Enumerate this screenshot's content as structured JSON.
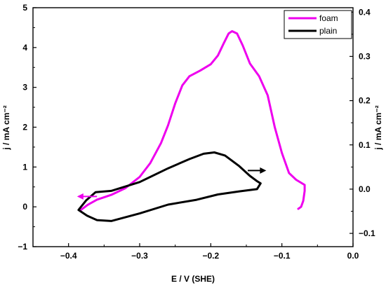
{
  "chart_data": {
    "type": "line",
    "title": "",
    "xlabel": "E / V (SHE)",
    "ylabel_left": "j / mA cm⁻²",
    "ylabel_right": "j / mA cm⁻²",
    "xlim": [
      -0.45,
      0.0
    ],
    "ylim_left": [
      -1.0,
      5.0
    ],
    "ylim_right": [
      -0.13,
      0.41
    ],
    "x_ticks": [
      -0.4,
      -0.3,
      -0.2,
      -0.1,
      0.0
    ],
    "x_tick_labels": [
      "−0.4",
      "−0.3",
      "−0.2",
      "−0.1",
      "0.0"
    ],
    "y_left_ticks": [
      -1,
      0,
      1,
      2,
      3,
      4,
      5
    ],
    "y_left_tick_labels": [
      "−1",
      "0",
      "1",
      "2",
      "3",
      "4",
      "5"
    ],
    "y_right_ticks": [
      -0.1,
      0.0,
      0.1,
      0.2,
      0.3,
      0.4
    ],
    "y_right_tick_labels": [
      "−0.1",
      "0.0",
      "0.1",
      "0.2",
      "0.3",
      "0.4"
    ],
    "legend_position": "top-right",
    "grid": false,
    "series": [
      {
        "name": "foam",
        "color": "#ee00ee",
        "axis": "left",
        "points": [
          [
            -0.382,
            -0.07
          ],
          [
            -0.373,
            0.05
          ],
          [
            -0.36,
            0.18
          ],
          [
            -0.34,
            0.3
          ],
          [
            -0.32,
            0.47
          ],
          [
            -0.3,
            0.75
          ],
          [
            -0.285,
            1.1
          ],
          [
            -0.27,
            1.6
          ],
          [
            -0.26,
            2.05
          ],
          [
            -0.25,
            2.6
          ],
          [
            -0.24,
            3.05
          ],
          [
            -0.23,
            3.28
          ],
          [
            -0.215,
            3.42
          ],
          [
            -0.2,
            3.58
          ],
          [
            -0.19,
            3.8
          ],
          [
            -0.182,
            4.1
          ],
          [
            -0.175,
            4.35
          ],
          [
            -0.17,
            4.41
          ],
          [
            -0.163,
            4.35
          ],
          [
            -0.155,
            4.05
          ],
          [
            -0.145,
            3.6
          ],
          [
            -0.132,
            3.28
          ],
          [
            -0.12,
            2.8
          ],
          [
            -0.11,
            2.0
          ],
          [
            -0.1,
            1.35
          ],
          [
            -0.09,
            0.85
          ],
          [
            -0.08,
            0.68
          ],
          [
            -0.068,
            0.55
          ],
          [
            -0.068,
            0.4
          ],
          [
            -0.07,
            0.15
          ],
          [
            -0.073,
            0.0
          ],
          [
            -0.077,
            -0.05
          ]
        ]
      },
      {
        "name": "plain",
        "color": "#000000",
        "axis": "right",
        "points": [
          [
            -0.13,
            0.013
          ],
          [
            -0.135,
            0.0
          ],
          [
            -0.16,
            -0.005
          ],
          [
            -0.19,
            -0.012
          ],
          [
            -0.22,
            -0.024
          ],
          [
            -0.26,
            -0.035
          ],
          [
            -0.3,
            -0.055
          ],
          [
            -0.34,
            -0.072
          ],
          [
            -0.36,
            -0.07
          ],
          [
            -0.374,
            -0.06
          ],
          [
            -0.386,
            -0.047
          ],
          [
            -0.375,
            -0.025
          ],
          [
            -0.362,
            -0.007
          ],
          [
            -0.34,
            -0.004
          ],
          [
            -0.3,
            0.016
          ],
          [
            -0.26,
            0.047
          ],
          [
            -0.23,
            0.068
          ],
          [
            -0.21,
            0.08
          ],
          [
            -0.195,
            0.083
          ],
          [
            -0.18,
            0.076
          ],
          [
            -0.16,
            0.052
          ],
          [
            -0.145,
            0.03
          ],
          [
            -0.135,
            0.018
          ],
          [
            -0.13,
            0.013
          ]
        ]
      }
    ],
    "arrows": [
      {
        "direction": "left",
        "color": "#ee00ee",
        "axis": "left",
        "from": [
          -0.36,
          0.26
        ],
        "to": [
          -0.388,
          0.26
        ]
      },
      {
        "direction": "right",
        "color": "#000000",
        "axis": "right",
        "from": [
          -0.148,
          0.042
        ],
        "to": [
          -0.122,
          0.042
        ]
      }
    ]
  }
}
